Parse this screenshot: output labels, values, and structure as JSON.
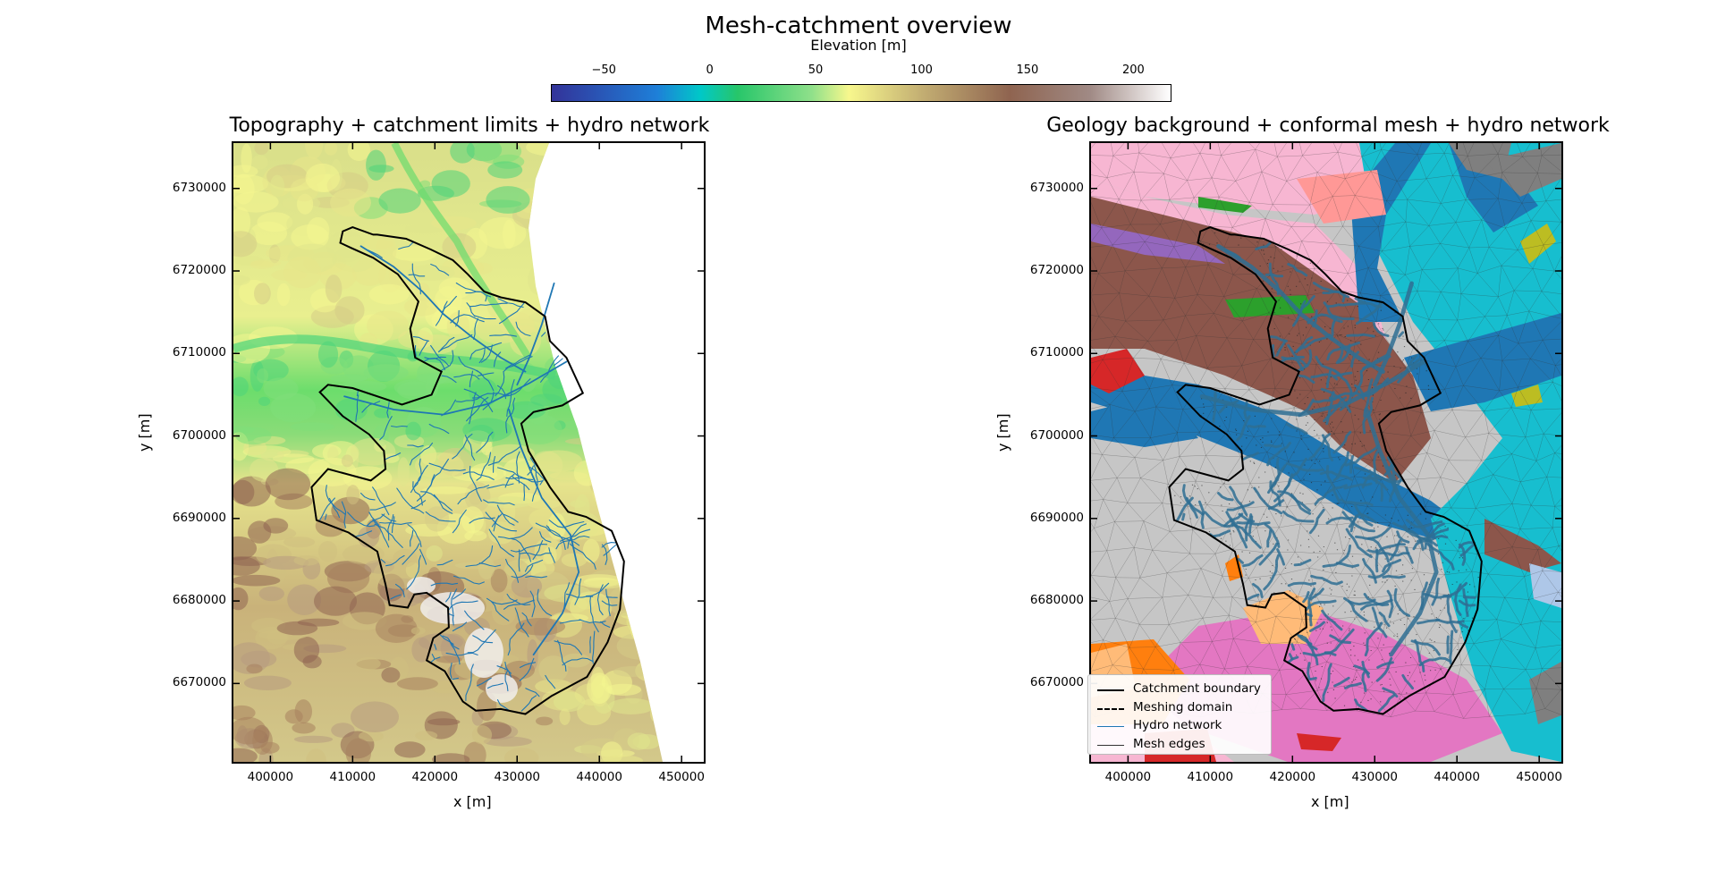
{
  "figure": {
    "title": "Mesh-catchment overview"
  },
  "colorbar": {
    "label": "Elevation [m]",
    "ticks": [
      "−50",
      "0",
      "50",
      "100",
      "150",
      "200"
    ],
    "tick_values": [
      -50,
      0,
      50,
      100,
      150,
      200
    ],
    "range": [
      -75,
      218
    ],
    "colormap": "terrain"
  },
  "map_data": {
    "type": "map",
    "x_axis_label": "x [m]",
    "y_axis_label": "y [m]",
    "xlim": [
      395500,
      452700
    ],
    "ylim": [
      6660500,
      6735500
    ],
    "x_ticks": [
      "400000",
      "410000",
      "420000",
      "430000",
      "440000",
      "450000"
    ],
    "x_tick_values": [
      400000,
      410000,
      420000,
      430000,
      440000,
      450000
    ],
    "y_ticks": [
      "6670000",
      "6680000",
      "6690000",
      "6700000",
      "6710000",
      "6720000",
      "6730000"
    ],
    "y_tick_values": [
      6670000,
      6680000,
      6690000,
      6700000,
      6710000,
      6720000,
      6730000
    ]
  },
  "panels": [
    {
      "title": "Topography + catchment limits + hydro network",
      "background": "topography"
    },
    {
      "title": "Geology background + conformal mesh + hydro network",
      "background": "geology"
    }
  ],
  "legend": {
    "entries": [
      {
        "label": "Catchment boundary",
        "style": "solid-thick",
        "color": "#000000"
      },
      {
        "label": "Meshing domain",
        "style": "dashed",
        "color": "#000000"
      },
      {
        "label": "Hydro network",
        "style": "solid-thin",
        "color": "#1f77b4"
      },
      {
        "label": "Mesh edges",
        "style": "solid-thin",
        "color": "#333333"
      }
    ]
  },
  "colors": {
    "hydro": "#1f77b4",
    "boundary": "#000000"
  }
}
